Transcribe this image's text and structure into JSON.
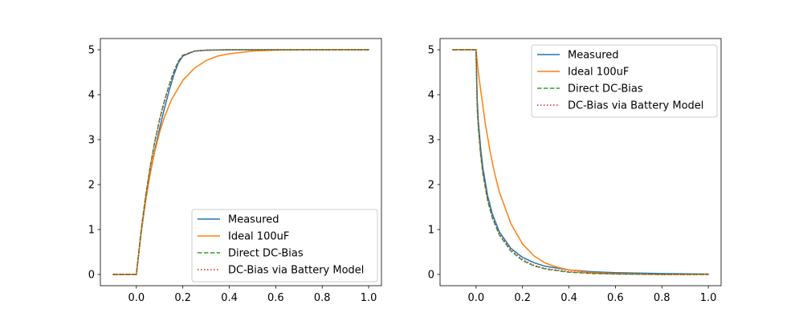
{
  "chart_data": [
    {
      "type": "line",
      "title": "",
      "xlabel": "",
      "ylabel": "",
      "xlim": [
        -0.155,
        1.055
      ],
      "ylim": [
        -0.25,
        5.25
      ],
      "xticks": [
        0.0,
        0.2,
        0.4,
        0.6,
        0.8,
        1.0
      ],
      "xtick_labels": [
        "0.0",
        "0.2",
        "0.4",
        "0.6",
        "0.8",
        "1.0"
      ],
      "yticks": [
        0,
        1,
        2,
        3,
        4,
        5
      ],
      "ytick_labels": [
        "0",
        "1",
        "2",
        "3",
        "4",
        "5"
      ],
      "legend_position": "lower-right",
      "series": [
        {
          "name": "Measured",
          "color": "#1f77b4",
          "style": "solid",
          "x": [
            -0.1,
            0.0,
            0.02,
            0.04,
            0.06,
            0.08,
            0.1,
            0.12,
            0.14,
            0.16,
            0.18,
            0.2,
            0.25,
            0.3,
            0.4,
            0.5,
            0.6,
            0.8,
            1.0
          ],
          "y": [
            0.0,
            0.0,
            0.91,
            1.65,
            2.26,
            2.78,
            3.25,
            3.68,
            4.07,
            4.42,
            4.7,
            4.86,
            4.97,
            4.99,
            5.0,
            5.0,
            5.0,
            5.0,
            5.0
          ]
        },
        {
          "name": "Ideal 100uF",
          "color": "#ff7f0e",
          "style": "solid",
          "x": [
            -0.1,
            0.0,
            0.02,
            0.04,
            0.06,
            0.08,
            0.1,
            0.12,
            0.15,
            0.2,
            0.25,
            0.3,
            0.35,
            0.4,
            0.5,
            0.6,
            0.7,
            0.8,
            1.0
          ],
          "y": [
            0.0,
            0.0,
            0.9,
            1.65,
            2.26,
            2.75,
            3.16,
            3.49,
            3.88,
            4.32,
            4.59,
            4.76,
            4.86,
            4.91,
            4.97,
            4.99,
            5.0,
            5.0,
            5.0
          ]
        },
        {
          "name": "Direct DC-Bias",
          "color": "#2ca02c",
          "style": "dashed",
          "x": [
            -0.1,
            0.0,
            0.02,
            0.04,
            0.06,
            0.08,
            0.1,
            0.12,
            0.14,
            0.16,
            0.18,
            0.2,
            0.25,
            0.3,
            0.4,
            0.5,
            0.6,
            0.8,
            1.0
          ],
          "y": [
            0.0,
            0.0,
            0.96,
            1.75,
            2.42,
            2.98,
            3.45,
            3.85,
            4.2,
            4.5,
            4.74,
            4.88,
            4.97,
            4.99,
            5.0,
            5.0,
            5.0,
            5.0,
            5.0
          ]
        },
        {
          "name": "DC-Bias via Battery Model",
          "color": "#d62728",
          "style": "dotted",
          "x": [
            -0.1,
            0.0,
            0.02,
            0.04,
            0.06,
            0.08,
            0.1,
            0.12,
            0.14,
            0.16,
            0.18,
            0.2,
            0.25,
            0.3,
            0.4,
            0.5,
            0.6,
            0.8,
            1.0
          ],
          "y": [
            0.0,
            0.0,
            0.95,
            1.74,
            2.41,
            2.97,
            3.44,
            3.84,
            4.19,
            4.49,
            4.73,
            4.87,
            4.97,
            4.99,
            5.0,
            5.0,
            5.0,
            5.0,
            5.0
          ]
        }
      ]
    },
    {
      "type": "line",
      "title": "",
      "xlabel": "",
      "ylabel": "",
      "xlim": [
        -0.155,
        1.055
      ],
      "ylim": [
        -0.25,
        5.25
      ],
      "xticks": [
        0.0,
        0.2,
        0.4,
        0.6,
        0.8,
        1.0
      ],
      "xtick_labels": [
        "0.0",
        "0.2",
        "0.4",
        "0.6",
        "0.8",
        "1.0"
      ],
      "yticks": [
        0,
        1,
        2,
        3,
        4,
        5
      ],
      "ytick_labels": [
        "0",
        "1",
        "2",
        "3",
        "4",
        "5"
      ],
      "legend_position": "upper-right",
      "series": [
        {
          "name": "Measured",
          "color": "#1f77b4",
          "style": "solid",
          "x": [
            -0.1,
            0.0,
            0.005,
            0.01,
            0.02,
            0.03,
            0.05,
            0.07,
            0.1,
            0.15,
            0.2,
            0.25,
            0.3,
            0.4,
            0.5,
            0.6,
            0.8,
            1.0
          ],
          "y": [
            5.0,
            5.0,
            3.9,
            3.4,
            2.8,
            2.35,
            1.75,
            1.35,
            0.95,
            0.58,
            0.38,
            0.26,
            0.18,
            0.1,
            0.06,
            0.04,
            0.02,
            0.01
          ]
        },
        {
          "name": "Ideal 100uF",
          "color": "#ff7f0e",
          "style": "solid",
          "x": [
            -0.1,
            0.0,
            0.01,
            0.02,
            0.04,
            0.06,
            0.08,
            0.1,
            0.15,
            0.2,
            0.25,
            0.3,
            0.35,
            0.4,
            0.5,
            0.6,
            0.8,
            1.0
          ],
          "y": [
            5.0,
            5.0,
            4.5,
            4.1,
            3.35,
            2.75,
            2.25,
            1.84,
            1.13,
            0.68,
            0.41,
            0.25,
            0.16,
            0.1,
            0.04,
            0.02,
            0.0,
            0.0
          ]
        },
        {
          "name": "Direct DC-Bias",
          "color": "#2ca02c",
          "style": "dashed",
          "x": [
            -0.1,
            0.0,
            0.005,
            0.01,
            0.02,
            0.03,
            0.05,
            0.07,
            0.1,
            0.15,
            0.2,
            0.25,
            0.3,
            0.4,
            0.5,
            0.6,
            0.8,
            1.0
          ],
          "y": [
            5.0,
            5.0,
            3.7,
            3.25,
            2.65,
            2.22,
            1.64,
            1.26,
            0.88,
            0.52,
            0.31,
            0.19,
            0.12,
            0.05,
            0.02,
            0.01,
            0.0,
            0.0
          ]
        },
        {
          "name": "DC-Bias via Battery Model",
          "color": "#d62728",
          "style": "dotted",
          "x": [
            -0.1,
            0.0,
            0.005,
            0.01,
            0.02,
            0.03,
            0.05,
            0.07,
            0.1,
            0.15,
            0.2,
            0.25,
            0.3,
            0.4,
            0.5,
            0.6,
            0.8,
            1.0
          ],
          "y": [
            5.0,
            5.0,
            3.75,
            3.28,
            2.68,
            2.25,
            1.67,
            1.28,
            0.9,
            0.54,
            0.33,
            0.2,
            0.13,
            0.06,
            0.03,
            0.01,
            0.0,
            0.0
          ]
        }
      ]
    }
  ]
}
